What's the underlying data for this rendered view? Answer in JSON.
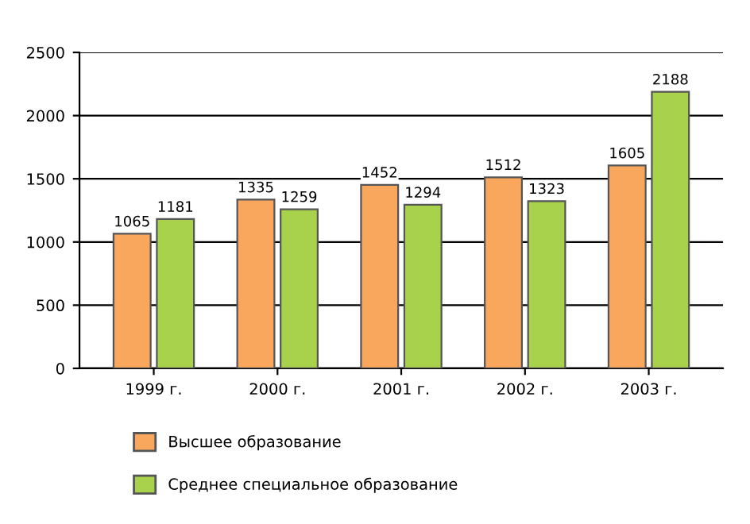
{
  "chart_data": {
    "type": "bar",
    "categories": [
      "1999 г.",
      "2000 г.",
      "2001 г.",
      "2002 г.",
      "2003 г."
    ],
    "series": [
      {
        "name": "Высшее образование",
        "color": "#f9a75c",
        "values": [
          1065,
          1335,
          1452,
          1512,
          1605
        ]
      },
      {
        "name": "Среднее специальное образование",
        "color": "#a9d24c",
        "values": [
          1181,
          1259,
          1294,
          1323,
          2188
        ]
      }
    ],
    "ylim": [
      0,
      2500
    ],
    "yticks": [
      0,
      500,
      1000,
      1500,
      2000,
      2500
    ],
    "grid": "y",
    "legend": "bottom",
    "data_labels": true
  }
}
